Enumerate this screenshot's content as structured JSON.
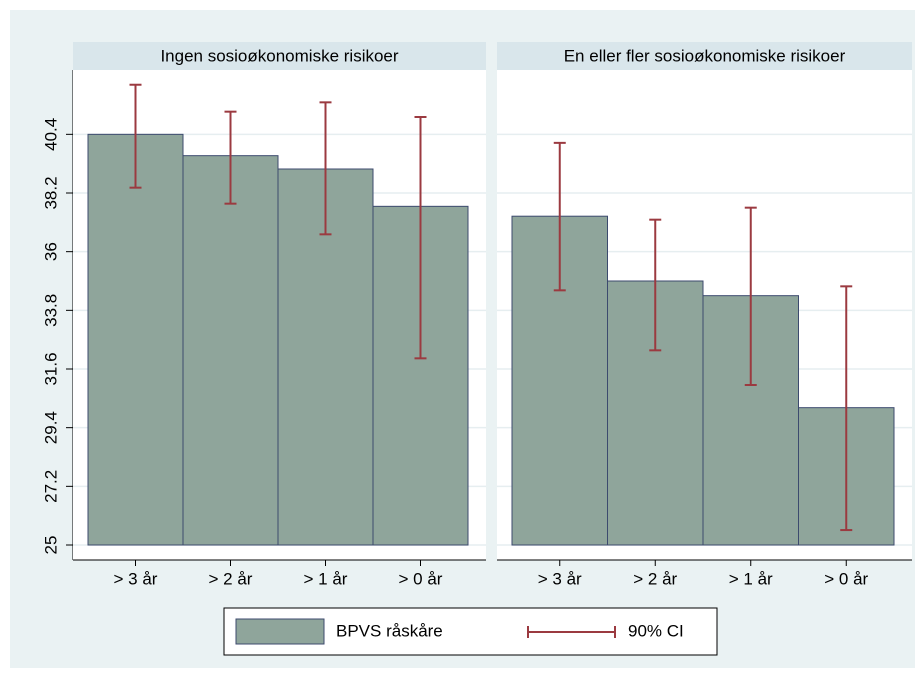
{
  "chart_data": {
    "type": "bar",
    "ylim": [
      25,
      42.7
    ],
    "yticks": [
      25,
      27.2,
      29.4,
      31.6,
      33.8,
      36,
      38.2,
      40.4
    ],
    "grid": true,
    "bar_color": "#8fa59b",
    "ci_color": "#9b3a40",
    "legend": [
      "BPVS råskåre",
      "90% CI"
    ],
    "panels": [
      {
        "title": "Ingen sosioøkonomiske risikoer",
        "categories": [
          "> 3 år",
          "> 2 år",
          "> 1 år",
          "> 0 år"
        ],
        "values": [
          40.4,
          39.6,
          39.1,
          37.7
        ],
        "ci_low": [
          38.4,
          37.8,
          36.65,
          32.0
        ],
        "ci_high": [
          42.26,
          41.25,
          41.6,
          41.05
        ]
      },
      {
        "title": "En eller fler sosioøkonomiske risikoer",
        "categories": [
          "> 3 år",
          "> 2 år",
          "> 1 år",
          "> 0 år"
        ],
        "values": [
          37.33,
          34.9,
          34.35,
          30.15
        ],
        "ci_low": [
          34.55,
          32.3,
          31.0,
          25.56
        ],
        "ci_high": [
          40.08,
          37.2,
          37.65,
          34.7
        ]
      }
    ]
  }
}
